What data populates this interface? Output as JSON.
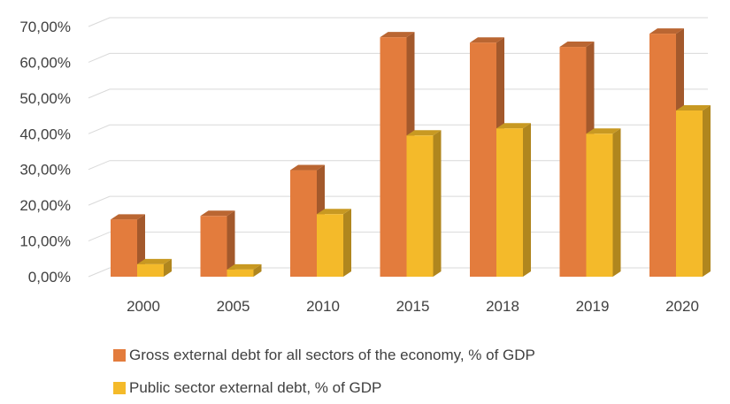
{
  "chart_data": {
    "type": "bar",
    "style": "3d-clustered-column",
    "categories": [
      "2000",
      "2005",
      "2010",
      "2015",
      "2018",
      "2019",
      "2020"
    ],
    "series": [
      {
        "name": "Gross external debt for all sectors of the economy, % of GDP",
        "color": "#E37C3D",
        "values": [
          16.0,
          17.0,
          29.8,
          67.0,
          65.5,
          64.3,
          68.0
        ]
      },
      {
        "name": "Public sector external debt, % of GDP",
        "color": "#F4BA2A",
        "values": [
          3.5,
          2.0,
          17.5,
          39.5,
          41.5,
          40.0,
          46.5
        ]
      }
    ],
    "ylim": [
      0,
      70
    ],
    "y_ticks": [
      0,
      10,
      20,
      30,
      40,
      50,
      60,
      70
    ],
    "y_tick_labels": [
      "0,00%",
      "10,00%",
      "20,00%",
      "30,00%",
      "40,00%",
      "50,00%",
      "60,00%",
      "70,00%"
    ],
    "title": "",
    "xlabel": "",
    "ylabel": "",
    "grid": true,
    "legend_position": "bottom"
  }
}
